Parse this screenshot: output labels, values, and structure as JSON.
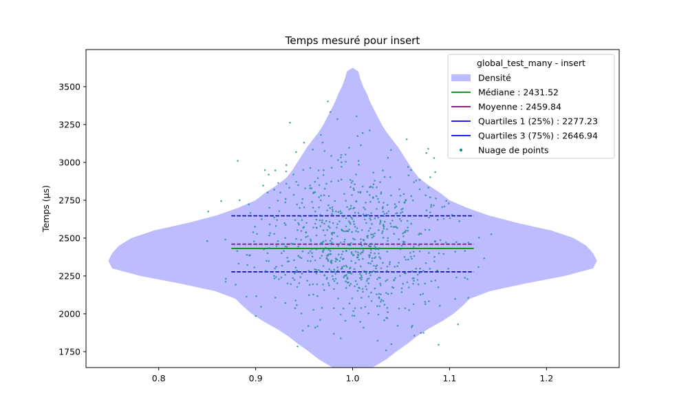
{
  "chart_data": {
    "type": "violin",
    "title": "Temps mesuré pour insert",
    "xlabel": "",
    "ylabel": "Temps (µs)",
    "xlim": [
      0.725,
      1.275
    ],
    "ylim": [
      1645,
      3745
    ],
    "x_ticks": [
      0.8,
      0.9,
      1.0,
      1.1,
      1.2
    ],
    "x_tick_labels": [
      "0.8",
      "0.9",
      "1.0",
      "1.1",
      "1.2"
    ],
    "y_ticks": [
      1750,
      2000,
      2250,
      2500,
      2750,
      3000,
      3250,
      3500
    ],
    "y_tick_labels": [
      "1750",
      "2000",
      "2250",
      "2500",
      "2750",
      "3000",
      "3250",
      "3500"
    ],
    "grid": false,
    "legend_position": "top-right",
    "legend_title": "global_test_many - insert",
    "legend_entries": [
      {
        "label": "Densité",
        "kind": "patch",
        "color": "#bcbcff"
      },
      {
        "label": "Médiane : 2431.52",
        "kind": "line",
        "color": "#008000"
      },
      {
        "label": "Moyenne : 2459.84",
        "kind": "line",
        "color": "#800080"
      },
      {
        "label": "Quartiles 1 (25%) : 2277.23",
        "kind": "line",
        "color": "#0000ff"
      },
      {
        "label": "Quartiles 3 (75%) : 2646.94",
        "kind": "line",
        "color": "#0000ff"
      },
      {
        "label": "Nuage de points",
        "kind": "dot",
        "color": "#1f8a8a"
      }
    ],
    "violin": {
      "center": 1.0,
      "color": "#bcbcff",
      "profile_y": [
        1615,
        1650,
        1700,
        1750,
        1800,
        1850,
        1900,
        1950,
        2000,
        2050,
        2100,
        2150,
        2200,
        2250,
        2300,
        2350,
        2400,
        2450,
        2500,
        2550,
        2600,
        2650,
        2700,
        2750,
        2800,
        2850,
        2900,
        2950,
        3000,
        3050,
        3100,
        3150,
        3200,
        3250,
        3300,
        3350,
        3400,
        3450,
        3500,
        3550,
        3600,
        3625
      ],
      "profile_halfwidth": [
        0.01,
        0.022,
        0.035,
        0.045,
        0.056,
        0.066,
        0.078,
        0.092,
        0.104,
        0.113,
        0.121,
        0.142,
        0.178,
        0.219,
        0.248,
        0.252,
        0.248,
        0.241,
        0.228,
        0.205,
        0.17,
        0.14,
        0.118,
        0.1,
        0.09,
        0.078,
        0.068,
        0.062,
        0.057,
        0.052,
        0.047,
        0.041,
        0.035,
        0.03,
        0.026,
        0.022,
        0.018,
        0.015,
        0.011,
        0.008,
        0.006,
        0.0
      ]
    },
    "stat_lines": [
      {
        "name": "Médiane",
        "y": 2431.52,
        "x0": 0.875,
        "x1": 1.125,
        "color": "#008000",
        "style": "solid"
      },
      {
        "name": "Moyenne",
        "y": 2459.84,
        "x0": 0.875,
        "x1": 1.125,
        "color": "#800080",
        "style": "dashed"
      },
      {
        "name": "Quartiles 1 (25%)",
        "y": 2277.23,
        "x0": 0.875,
        "x1": 1.125,
        "color": "#0000bb",
        "style": "dashed"
      },
      {
        "name": "Quartiles 3 (75%)",
        "y": 2646.94,
        "x0": 0.875,
        "x1": 1.125,
        "color": "#0000bb",
        "style": "dashed"
      }
    ],
    "scatter": {
      "name": "Nuage de points",
      "color": "#1f8a8a",
      "count": 800,
      "seed": 11,
      "x_center": 1.0,
      "x_sd": 0.05,
      "y_median": 2431.52,
      "y_q1": 2277.23,
      "y_q3": 2646.94,
      "y_min": 1615,
      "y_max": 3625
    }
  }
}
